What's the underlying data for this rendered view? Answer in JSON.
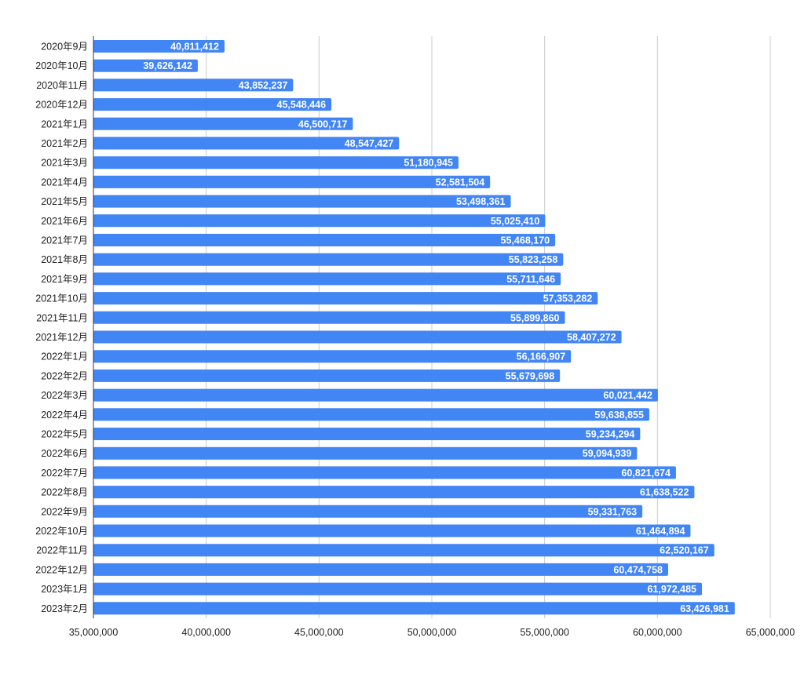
{
  "chart_data": {
    "type": "bar",
    "orientation": "horizontal",
    "title": "",
    "xlabel": "",
    "ylabel": "",
    "categories": [
      "2020年9月",
      "2020年10月",
      "2020年11月",
      "2020年12月",
      "2021年1月",
      "2021年2月",
      "2021年3月",
      "2021年4月",
      "2021年5月",
      "2021年6月",
      "2021年7月",
      "2021年8月",
      "2021年9月",
      "2021年10月",
      "2021年11月",
      "2021年12月",
      "2022年1月",
      "2022年2月",
      "2022年3月",
      "2022年4月",
      "2022年5月",
      "2022年6月",
      "2022年7月",
      "2022年8月",
      "2022年9月",
      "2022年10月",
      "2022年11月",
      "2022年12月",
      "2023年1月",
      "2023年2月"
    ],
    "values": [
      40811412,
      39626142,
      43852237,
      45548446,
      46500717,
      48547427,
      51180945,
      52581504,
      53498361,
      55025410,
      55468170,
      55823258,
      55711646,
      57353282,
      55899860,
      58407272,
      56166907,
      55679698,
      60021442,
      59638855,
      59234294,
      59094939,
      60821674,
      61638522,
      59331763,
      61464894,
      62520167,
      60474758,
      61972485,
      63426981
    ],
    "data_labels": [
      "40,811,412",
      "39,626,142",
      "43,852,237",
      "45,548,446",
      "46,500,717",
      "48,547,427",
      "51,180,945",
      "52,581,504",
      "53,498,361",
      "55,025,410",
      "55,468,170",
      "55,823,258",
      "55,711,646",
      "57,353,282",
      "55,899,860",
      "58,407,272",
      "56,166,907",
      "55,679,698",
      "60,021,442",
      "59,638,855",
      "59,234,294",
      "59,094,939",
      "60,821,674",
      "61,638,522",
      "59,331,763",
      "61,464,894",
      "62,520,167",
      "60,474,758",
      "61,972,485",
      "63,426,981"
    ],
    "xlim": [
      35000000,
      65000000
    ],
    "x_ticks": [
      35000000,
      40000000,
      45000000,
      50000000,
      55000000,
      60000000,
      65000000
    ],
    "x_tick_labels": [
      "35,000,000",
      "40,000,000",
      "45,000,000",
      "50,000,000",
      "55,000,000",
      "60,000,000",
      "65,000,000"
    ],
    "grid": "vertical",
    "legend": "none",
    "bar_color": "#4285f4",
    "label_color": "#ffffff",
    "grid_color": "#cccccc",
    "axis_line_color": "#333333",
    "text_color": "#222222"
  }
}
